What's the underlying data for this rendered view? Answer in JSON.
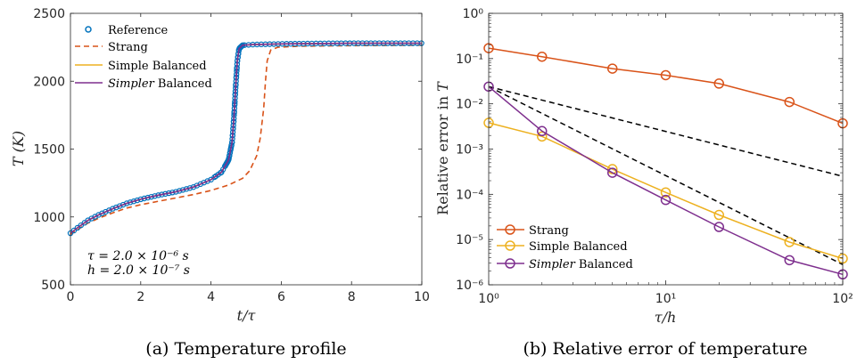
{
  "chart_data": [
    {
      "type": "line",
      "caption": "(a) Temperature profile",
      "xlabel": "t/τ",
      "ylabel": "T (K)",
      "xlim": [
        0,
        10
      ],
      "ylim": [
        500,
        2500
      ],
      "xticks": [
        "0",
        "2",
        "4",
        "6",
        "8",
        "10"
      ],
      "yticks": [
        "500",
        "1000",
        "1500",
        "2000",
        "2500"
      ],
      "legend_position": "top-left",
      "grid": false,
      "annotations": [
        "τ = 2.0 × 10⁻⁶ s",
        "h = 2.0 × 10⁻⁷ s"
      ],
      "series": [
        {
          "name": "Reference",
          "style": "markers",
          "color": "#0072BD",
          "points": [
            [
              0,
              880
            ],
            [
              0.2,
              920
            ],
            [
              0.5,
              975
            ],
            [
              0.8,
              1015
            ],
            [
              1.2,
              1060
            ],
            [
              1.6,
              1100
            ],
            [
              2,
              1130
            ],
            [
              2.5,
              1160
            ],
            [
              3,
              1185
            ],
            [
              3.5,
              1220
            ],
            [
              4,
              1275
            ],
            [
              4.3,
              1330
            ],
            [
              4.5,
              1420
            ],
            [
              4.6,
              1550
            ],
            [
              4.65,
              1720
            ],
            [
              4.7,
              1950
            ],
            [
              4.75,
              2150
            ],
            [
              4.8,
              2240
            ],
            [
              4.9,
              2265
            ],
            [
              5.2,
              2270
            ],
            [
              6,
              2275
            ],
            [
              7,
              2278
            ],
            [
              8,
              2280
            ],
            [
              9,
              2280
            ],
            [
              10,
              2280
            ]
          ]
        },
        {
          "name": "Strang",
          "style": "dashed",
          "color": "#D95319",
          "points": [
            [
              0,
              870
            ],
            [
              0.2,
              905
            ],
            [
              0.5,
              955
            ],
            [
              0.8,
              990
            ],
            [
              1.2,
              1030
            ],
            [
              1.6,
              1065
            ],
            [
              2,
              1090
            ],
            [
              2.5,
              1115
            ],
            [
              3,
              1140
            ],
            [
              3.5,
              1165
            ],
            [
              4,
              1195
            ],
            [
              4.5,
              1235
            ],
            [
              4.9,
              1285
            ],
            [
              5.1,
              1340
            ],
            [
              5.3,
              1450
            ],
            [
              5.4,
              1580
            ],
            [
              5.5,
              1800
            ],
            [
              5.55,
              2000
            ],
            [
              5.6,
              2150
            ],
            [
              5.7,
              2230
            ],
            [
              5.9,
              2250
            ],
            [
              6.5,
              2258
            ],
            [
              8,
              2262
            ],
            [
              10,
              2265
            ]
          ]
        },
        {
          "name": "Simple Balanced",
          "style": "solid",
          "color": "#EDB120",
          "points": [
            [
              0,
              880
            ],
            [
              0.2,
              920
            ],
            [
              0.5,
              975
            ],
            [
              0.8,
              1015
            ],
            [
              1.2,
              1060
            ],
            [
              1.6,
              1100
            ],
            [
              2,
              1130
            ],
            [
              2.5,
              1160
            ],
            [
              3,
              1185
            ],
            [
              3.5,
              1220
            ],
            [
              4,
              1275
            ],
            [
              4.3,
              1330
            ],
            [
              4.5,
              1420
            ],
            [
              4.6,
              1550
            ],
            [
              4.65,
              1720
            ],
            [
              4.7,
              1950
            ],
            [
              4.75,
              2150
            ],
            [
              4.8,
              2240
            ],
            [
              4.9,
              2265
            ],
            [
              5.2,
              2270
            ],
            [
              6,
              2275
            ],
            [
              7,
              2278
            ],
            [
              8,
              2280
            ],
            [
              9,
              2280
            ],
            [
              10,
              2280
            ]
          ]
        },
        {
          "name": "Simpler Balanced",
          "name_italic": "Simpler",
          "name_rest": " Balanced",
          "style": "solid",
          "color": "#7E2F8E",
          "points": [
            [
              0,
              880
            ],
            [
              0.2,
              920
            ],
            [
              0.5,
              975
            ],
            [
              0.8,
              1015
            ],
            [
              1.2,
              1060
            ],
            [
              1.6,
              1100
            ],
            [
              2,
              1130
            ],
            [
              2.5,
              1160
            ],
            [
              3,
              1185
            ],
            [
              3.5,
              1220
            ],
            [
              4,
              1275
            ],
            [
              4.3,
              1330
            ],
            [
              4.5,
              1420
            ],
            [
              4.6,
              1550
            ],
            [
              4.65,
              1720
            ],
            [
              4.7,
              1950
            ],
            [
              4.75,
              2150
            ],
            [
              4.8,
              2240
            ],
            [
              4.9,
              2265
            ],
            [
              5.2,
              2270
            ],
            [
              6,
              2275
            ],
            [
              7,
              2278
            ],
            [
              8,
              2280
            ],
            [
              9,
              2280
            ],
            [
              10,
              2280
            ]
          ]
        }
      ]
    },
    {
      "type": "line",
      "caption": "(b) Relative error of temperature",
      "xlabel": "τ/h",
      "ylabel": "Relative error in T",
      "xscale": "log",
      "yscale": "log",
      "xlim": [
        1,
        100
      ],
      "ylim": [
        1e-06,
        1
      ],
      "xticks": [
        "10⁰",
        "10¹",
        "10²"
      ],
      "yticks": [
        "10⁻⁶",
        "10⁻⁵",
        "10⁻⁴",
        "10⁻³",
        "10⁻²",
        "10⁻¹",
        "10⁰"
      ],
      "legend_position": "bottom-left",
      "grid": false,
      "x": [
        1,
        2,
        5,
        10,
        20,
        50,
        100
      ],
      "series": [
        {
          "name": "Strang",
          "color": "#D95319",
          "marker": "circle",
          "values": [
            0.17,
            0.11,
            0.06,
            0.043,
            0.028,
            0.011,
            0.0037
          ]
        },
        {
          "name": "Simple Balanced",
          "color": "#EDB120",
          "marker": "circle",
          "values": [
            0.0038,
            0.0019,
            0.00036,
            0.00011,
            3.5e-05,
            8.8e-06,
            3.8e-06
          ]
        },
        {
          "name": "Simpler Balanced",
          "name_italic": "Simpler",
          "name_rest": " Balanced",
          "color": "#7E2F8E",
          "marker": "circle",
          "values": [
            0.024,
            0.0025,
            0.0003,
            7.5e-05,
            1.9e-05,
            3.5e-06,
            1.7e-06
          ]
        }
      ],
      "reference_lines": [
        {
          "style": "dashed",
          "color": "#000000",
          "x": [
            1,
            100
          ],
          "values": [
            0.024,
            0.00025
          ]
        },
        {
          "style": "dashed",
          "color": "#000000",
          "x": [
            1,
            100
          ],
          "values": [
            0.024,
            2.8e-06
          ]
        }
      ]
    }
  ]
}
